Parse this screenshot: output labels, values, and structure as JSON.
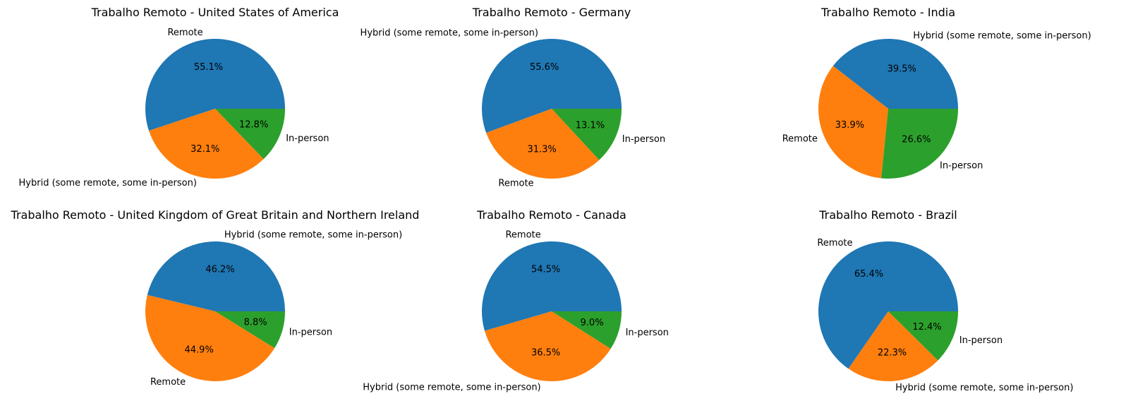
{
  "chart_data": [
    {
      "type": "pie",
      "title": "Trabalho Remoto - United States of America",
      "slices": [
        {
          "label": "Remote",
          "value": 55.1,
          "pct_label": "55.1%",
          "color": "#1f77b4"
        },
        {
          "label": "Hybrid (some remote, some in-person)",
          "value": 32.1,
          "pct_label": "32.1%",
          "color": "#ff7f0e"
        },
        {
          "label": "In-person",
          "value": 12.8,
          "pct_label": "12.8%",
          "color": "#2ca02c"
        }
      ]
    },
    {
      "type": "pie",
      "title": "Trabalho Remoto - Germany",
      "slices": [
        {
          "label": "Hybrid (some remote, some in-person)",
          "value": 55.6,
          "pct_label": "55.6%",
          "color": "#1f77b4"
        },
        {
          "label": "Remote",
          "value": 31.3,
          "pct_label": "31.3%",
          "color": "#ff7f0e"
        },
        {
          "label": "In-person",
          "value": 13.1,
          "pct_label": "13.1%",
          "color": "#2ca02c"
        }
      ]
    },
    {
      "type": "pie",
      "title": "Trabalho Remoto - India",
      "slices": [
        {
          "label": "Hybrid (some remote, some in-person)",
          "value": 39.5,
          "pct_label": "39.5%",
          "color": "#1f77b4"
        },
        {
          "label": "Remote",
          "value": 33.9,
          "pct_label": "33.9%",
          "color": "#ff7f0e"
        },
        {
          "label": "In-person",
          "value": 26.6,
          "pct_label": "26.6%",
          "color": "#2ca02c"
        }
      ]
    },
    {
      "type": "pie",
      "title": "Trabalho Remoto - United Kingdom of Great Britain and Northern Ireland",
      "slices": [
        {
          "label": "Hybrid (some remote, some in-person)",
          "value": 46.2,
          "pct_label": "46.2%",
          "color": "#1f77b4"
        },
        {
          "label": "Remote",
          "value": 44.9,
          "pct_label": "44.9%",
          "color": "#ff7f0e"
        },
        {
          "label": "In-person",
          "value": 8.8,
          "pct_label": "8.8%",
          "color": "#2ca02c"
        }
      ]
    },
    {
      "type": "pie",
      "title": "Trabalho Remoto - Canada",
      "slices": [
        {
          "label": "Remote",
          "value": 54.5,
          "pct_label": "54.5%",
          "color": "#1f77b4"
        },
        {
          "label": "Hybrid (some remote, some in-person)",
          "value": 36.5,
          "pct_label": "36.5%",
          "color": "#ff7f0e"
        },
        {
          "label": "In-person",
          "value": 9.0,
          "pct_label": "9.0%",
          "color": "#2ca02c"
        }
      ]
    },
    {
      "type": "pie",
      "title": "Trabalho Remoto - Brazil",
      "slices": [
        {
          "label": "Remote",
          "value": 65.4,
          "pct_label": "65.4%",
          "color": "#1f77b4"
        },
        {
          "label": "Hybrid (some remote, some in-person)",
          "value": 22.3,
          "pct_label": "22.3%",
          "color": "#ff7f0e"
        },
        {
          "label": "In-person",
          "value": 12.4,
          "pct_label": "12.4%",
          "color": "#2ca02c"
        }
      ]
    }
  ]
}
